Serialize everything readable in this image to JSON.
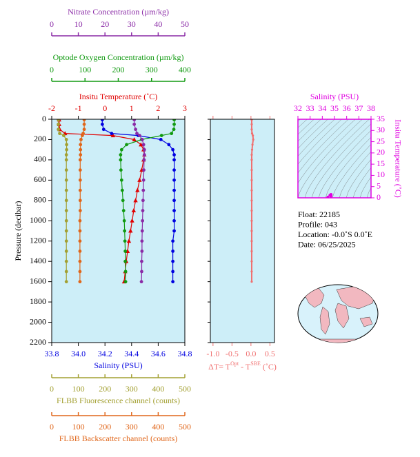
{
  "chart_data": [
    {
      "type": "line",
      "y_label": "Pressure (decibar)",
      "ylim": [
        0,
        2200
      ],
      "y_inverted": true,
      "yticks": [
        0,
        200,
        400,
        600,
        800,
        1000,
        1200,
        1400,
        1600,
        1800,
        2000,
        2200
      ],
      "background": "#cdeef8",
      "y": [
        5,
        50,
        100,
        140,
        160,
        200,
        250,
        300,
        350,
        400,
        500,
        600,
        700,
        800,
        900,
        1000,
        1100,
        1200,
        1300,
        1400,
        1500,
        1600
      ],
      "series": [
        {
          "name": "Insitu Temperature (˚C)",
          "color": "#e00000",
          "marker": "triangle",
          "axis_position": "top",
          "xlim": [
            -2,
            3
          ],
          "xticks": [
            -2,
            -1,
            0,
            1,
            2,
            3
          ],
          "values": [
            -1.72,
            -1.72,
            -1.7,
            -1.5,
            0.3,
            1.1,
            1.35,
            1.45,
            1.48,
            1.45,
            1.38,
            1.3,
            1.22,
            1.15,
            1.08,
            1.02,
            0.96,
            0.9,
            0.85,
            0.8,
            0.76,
            0.72
          ]
        },
        {
          "name": "Salinity (PSU)",
          "color": "#0000e0",
          "marker": "circle",
          "axis_position": "bottom",
          "xlim": [
            33.8,
            34.8
          ],
          "xticks": [
            33.8,
            {
              "value": 34,
              "label": "34.0"
            },
            34.2,
            34.4,
            34.6,
            34.8
          ],
          "values": [
            34.18,
            34.18,
            34.19,
            34.25,
            34.45,
            34.62,
            34.68,
            34.71,
            34.72,
            34.72,
            34.72,
            34.72,
            34.72,
            34.72,
            34.72,
            34.72,
            34.72,
            34.71,
            34.71,
            34.71,
            34.71,
            34.71
          ]
        },
        {
          "name": "Optode Oxygen Concentration (µm/kg)",
          "color": "#109a10",
          "marker": "circle",
          "axis_position": "top",
          "xlim": [
            0,
            400
          ],
          "xticks": [
            0,
            100,
            200,
            300,
            400
          ],
          "values": [
            368,
            368,
            367,
            360,
            330,
            270,
            225,
            210,
            207,
            207,
            208,
            210,
            212,
            214,
            216,
            218,
            219,
            220,
            221,
            221,
            222,
            222
          ]
        },
        {
          "name": "Nitrate Concentration (µm/kg)",
          "color": "#8a2aa6",
          "marker": "circle",
          "axis_position": "top",
          "xlim": [
            0,
            50
          ],
          "xticks": [
            0,
            10,
            20,
            30,
            40,
            50
          ],
          "values": [
            31,
            31,
            31.5,
            32,
            33,
            34,
            34.5,
            34.8,
            34.8,
            34.7,
            34.6,
            34.5,
            34.4,
            34.3,
            34.2,
            34.1,
            34,
            33.9,
            33.9,
            33.8,
            33.8,
            33.7
          ]
        },
        {
          "name": "FLBB Fluorescence channel (counts)",
          "color": "#a3a032",
          "marker": "circle",
          "axis_position": "bottom",
          "xlim": [
            0,
            500
          ],
          "xticks": [
            0,
            100,
            200,
            300,
            400,
            500
          ],
          "values": [
            25,
            25,
            25,
            30,
            45,
            55,
            56,
            56,
            55,
            55,
            55,
            55,
            55,
            55,
            55,
            55,
            55,
            55,
            55,
            55,
            55,
            55
          ]
        },
        {
          "name": "FLBB Backscatter channel (counts)",
          "color": "#e0661a",
          "marker": "circle",
          "axis_position": "bottom",
          "xlim": [
            0,
            500
          ],
          "xticks": [
            0,
            100,
            200,
            300,
            400,
            500
          ],
          "values": [
            122,
            122,
            122,
            118,
            115,
            110,
            108,
            108,
            108,
            107,
            107,
            107,
            107,
            107,
            107,
            106,
            106,
            106,
            106,
            106,
            106,
            106
          ]
        }
      ]
    },
    {
      "type": "line",
      "color": "#f07070",
      "background": "#cdeef8",
      "x_label": [
        "ΔT= T",
        "Opt",
        " - T",
        "SBE",
        " (˚C)"
      ],
      "xlim": [
        -1.07,
        0.62
      ],
      "xticks": [
        {
          "value": -1,
          "label": "-1.0"
        },
        -0.5,
        {
          "value": 0,
          "label": "0.0"
        },
        0.5
      ],
      "values": [
        0.02,
        0.02,
        0.02,
        0.03,
        0.05,
        0.06,
        0.04,
        0.03,
        0.02,
        0.02,
        0.02,
        0.02,
        0.02,
        0.02,
        0.02,
        0.02,
        0.02,
        0.02,
        0.02,
        0.02,
        0.02,
        0.02
      ]
    },
    {
      "type": "scatter",
      "color": "#e000e0",
      "background": "#cdeef8",
      "x_label": "Salinity (PSU)",
      "y_label": "Insitu Temperature (˚C)",
      "xlim": [
        32,
        38
      ],
      "xticks": [
        32,
        33,
        34,
        35,
        36,
        37,
        38
      ],
      "ylim": [
        0,
        35
      ],
      "yticks": [
        0,
        5,
        10,
        15,
        20,
        25,
        30,
        35
      ]
    }
  ],
  "float_info": [
    "Float:  22185",
    "Profile:  043",
    "Location:  -0.0˚S   0.0˚E",
    "Date:  06/25/2025"
  ]
}
